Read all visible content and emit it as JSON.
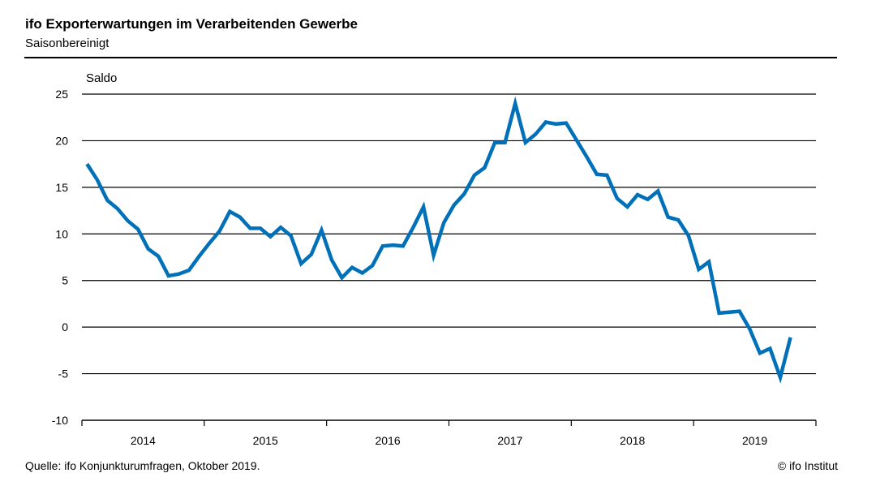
{
  "header": {
    "title": "ifo Exporterwartungen im Verarbeitenden Gewerbe",
    "subtitle": "Saisonbereinigt"
  },
  "footer": {
    "source": "Quelle: ifo Konjunkturumfragen,   Oktober 2019.",
    "copyright": "© ifo Institut"
  },
  "chart_data": {
    "type": "line",
    "title": "ifo Exporterwartungen im Verarbeitenden Gewerbe",
    "subtitle": "Saisonbereinigt",
    "ylabel": "Saldo",
    "xlabel": "",
    "ylim": [
      -10,
      25
    ],
    "yticks": [
      25,
      20,
      15,
      10,
      5,
      0,
      -5,
      -10
    ],
    "x_start": "2014-01",
    "x_frequency": "monthly",
    "xticklabels": [
      "2014",
      "2015",
      "2016",
      "2017",
      "2018",
      "2019"
    ],
    "grid": true,
    "color": "#0070B8",
    "values": [
      17.5,
      15.8,
      13.6,
      12.7,
      11.4,
      10.5,
      8.4,
      7.6,
      5.5,
      5.7,
      6.1,
      7.6,
      9.0,
      10.3,
      12.4,
      11.8,
      10.6,
      10.6,
      9.7,
      10.7,
      9.8,
      6.8,
      7.8,
      10.4,
      7.2,
      5.3,
      6.4,
      5.8,
      6.6,
      8.7,
      8.8,
      8.7,
      10.7,
      12.9,
      7.7,
      11.2,
      13.1,
      14.3,
      16.3,
      17.1,
      19.8,
      19.8,
      24.0,
      19.8,
      20.7,
      22.0,
      21.8,
      21.9,
      20.1,
      18.3,
      16.4,
      16.3,
      13.8,
      12.9,
      14.2,
      13.7,
      14.6,
      11.8,
      11.5,
      9.8,
      6.2,
      7.0,
      1.5,
      1.6,
      1.7,
      -0.2,
      -2.8,
      -2.3,
      -5.4,
      -1.1
    ]
  }
}
